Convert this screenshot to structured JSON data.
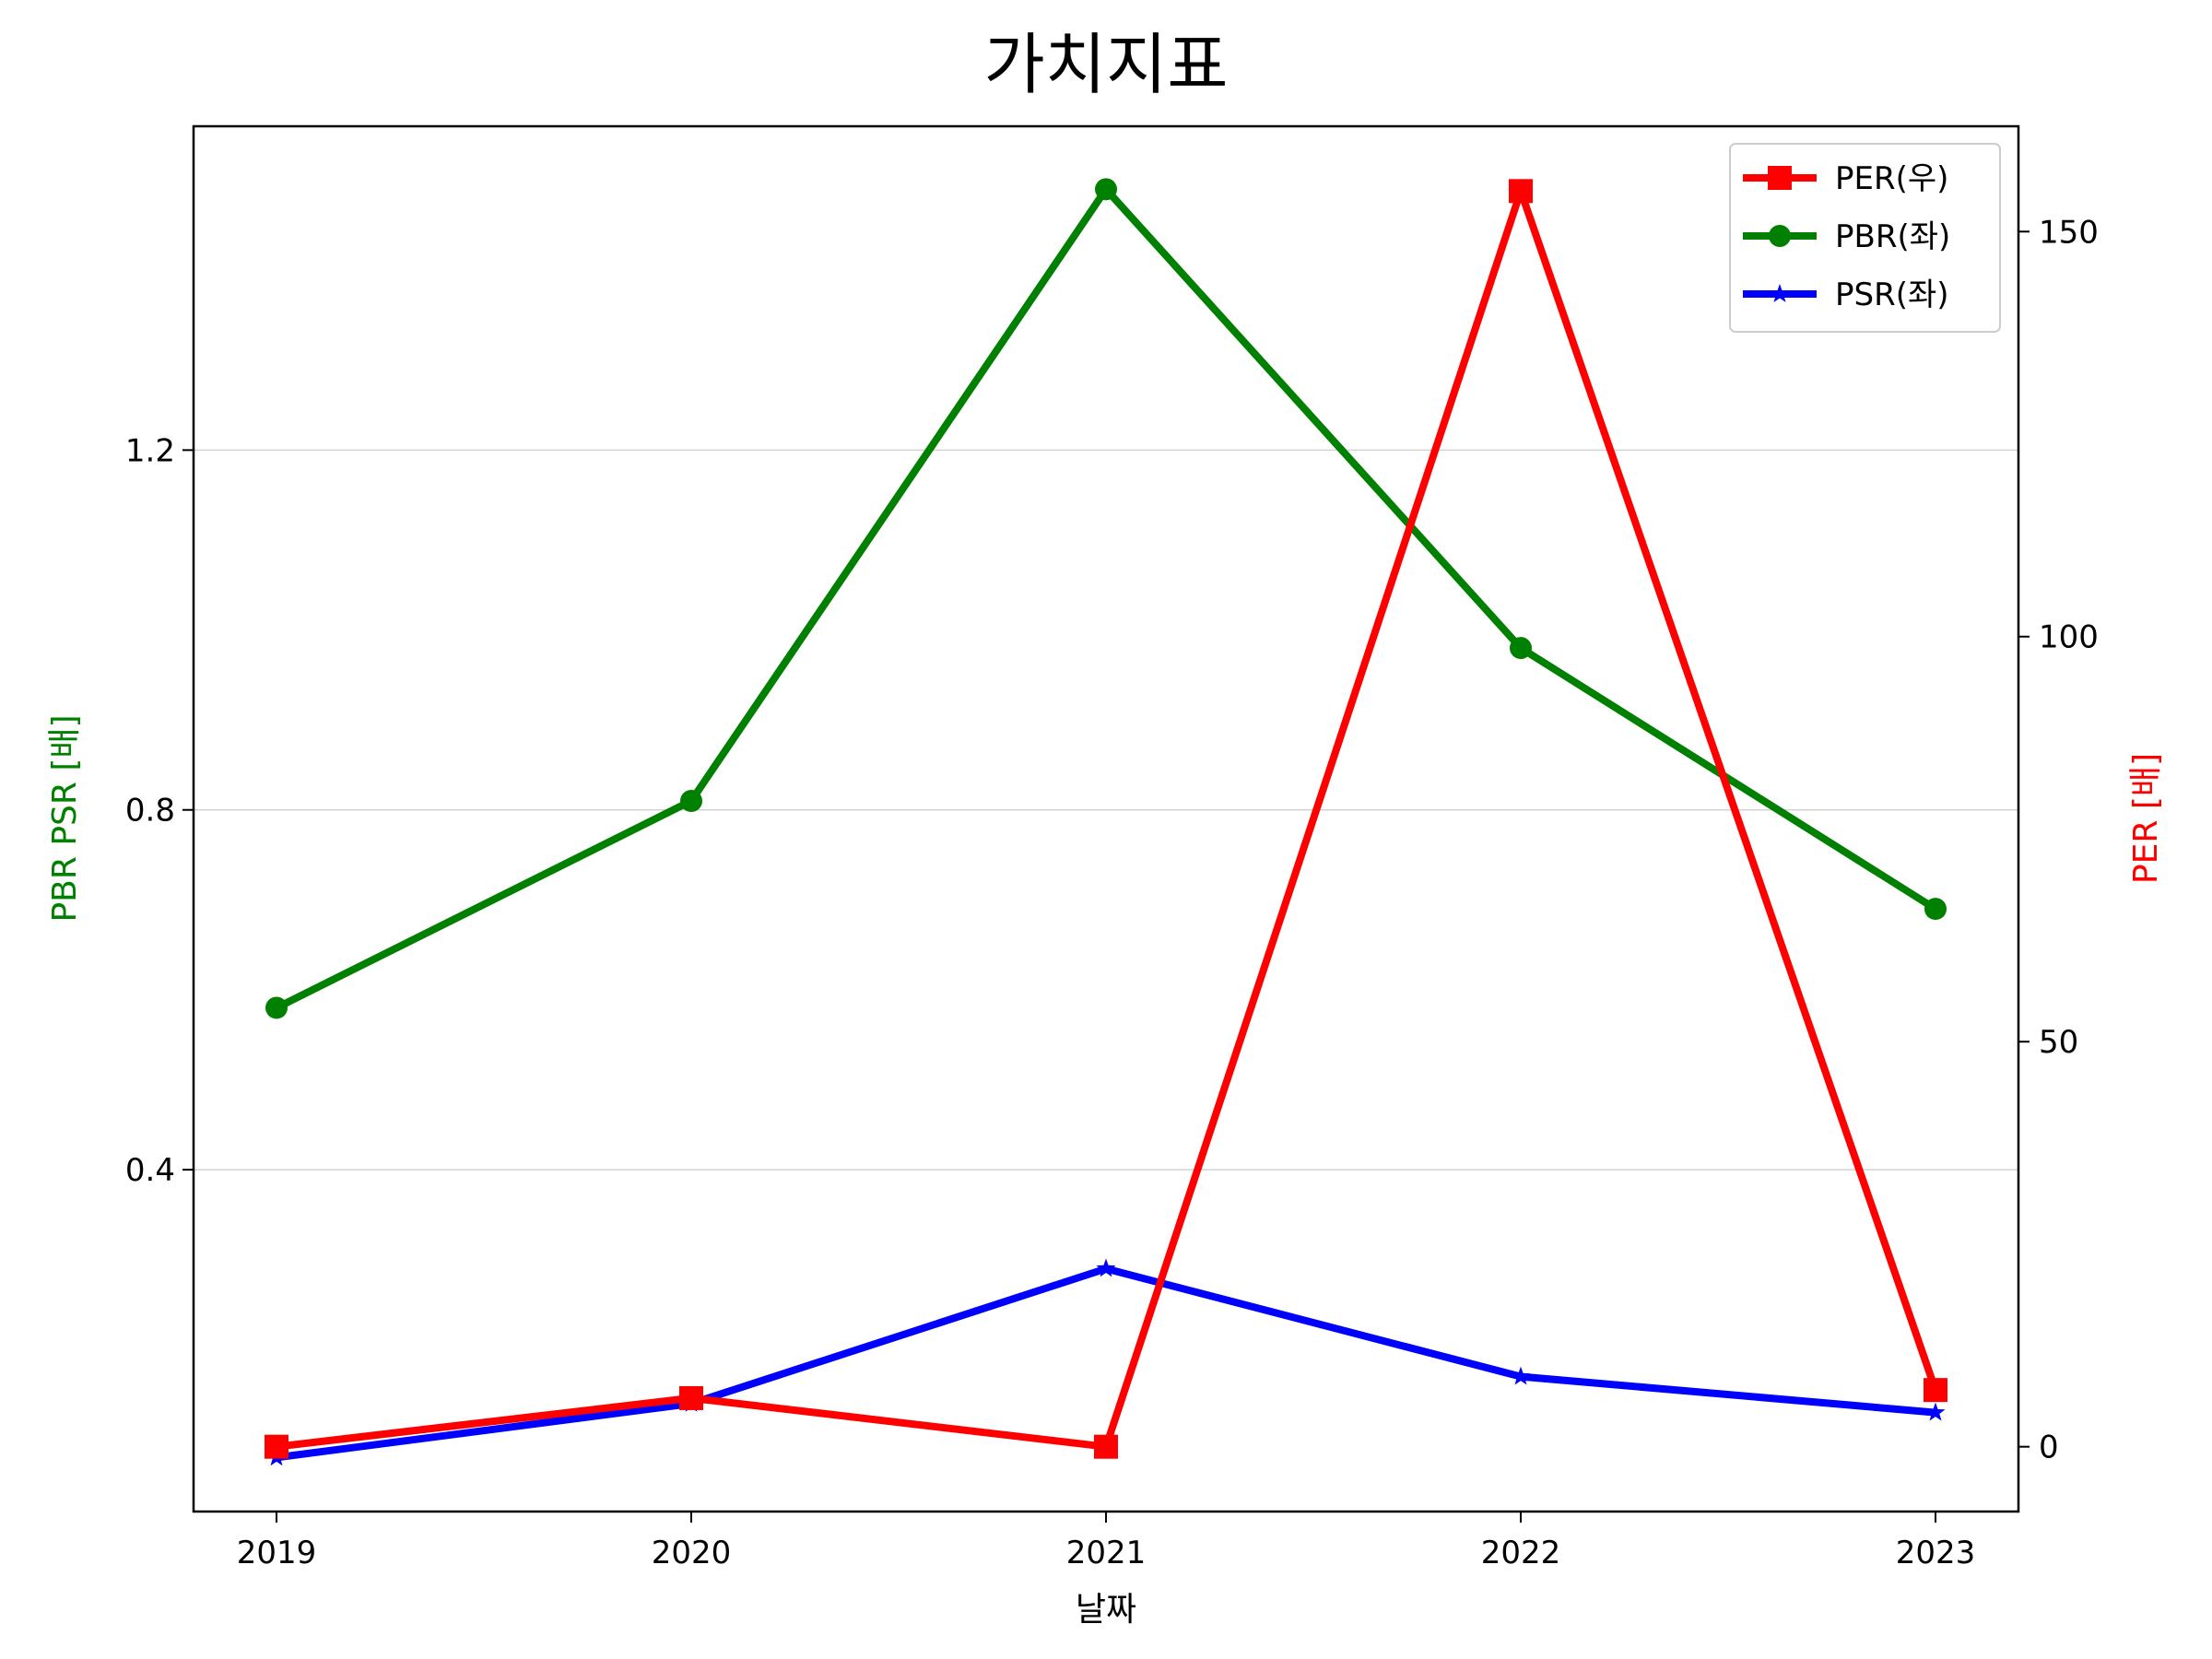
{
  "chart_data": {
    "type": "line",
    "title": "가치지표",
    "xlabel": "날짜",
    "ylabel_left": "PBR PSR [배]",
    "ylabel_right": "PER [배]",
    "categories": [
      "2019",
      "2020",
      "2021",
      "2022",
      "2023"
    ],
    "left_axis": {
      "ylim": [
        0.02,
        1.56
      ],
      "ticks": [
        0.4,
        0.8,
        1.2
      ],
      "tick_labels": [
        "0.4",
        "0.8",
        "1.2"
      ],
      "grid": true
    },
    "right_axis": {
      "ylim": [
        -8,
        163
      ],
      "ticks": [
        0,
        50,
        100,
        150
      ],
      "tick_labels": [
        "0",
        "50",
        "100",
        "150"
      ]
    },
    "series": [
      {
        "name": "PER(우)",
        "axis": "right",
        "color": "#ff0000",
        "marker": "square",
        "values": [
          0,
          6,
          0,
          155,
          7
        ]
      },
      {
        "name": "PBR(좌)",
        "axis": "left",
        "color": "#008000",
        "marker": "circle",
        "values": [
          0.58,
          0.81,
          1.49,
          0.98,
          0.69
        ]
      },
      {
        "name": "PSR(좌)",
        "axis": "left",
        "color": "#0000ff",
        "marker": "star",
        "values": [
          0.08,
          0.14,
          0.29,
          0.17,
          0.13
        ]
      }
    ],
    "legend_position": "top-right"
  }
}
